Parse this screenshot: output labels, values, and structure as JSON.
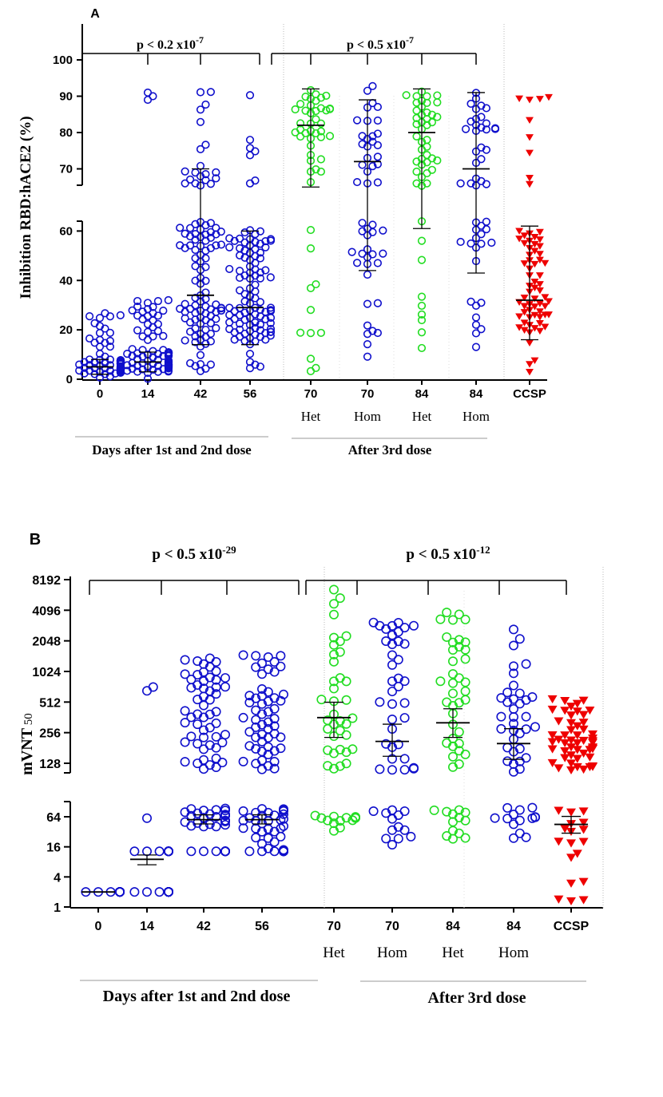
{
  "colors": {
    "blue": "#1010cc",
    "green": "#22dd22",
    "red": "#ee0000",
    "axis": "#000000",
    "divider": "#b8b8b8"
  },
  "chart_data": [
    {
      "type": "scatter",
      "panel_label": "A",
      "ylabel": "Inhibition RBD:hACE2 (%)",
      "y_broken_axis": true,
      "ylim_lower": [
        0,
        64
      ],
      "ylim_upper": [
        65,
        100
      ],
      "yticks_lower": [
        "0",
        "20",
        "40",
        "60"
      ],
      "yticks_upper": [
        "70",
        "80",
        "90",
        "100"
      ],
      "categories": [
        "0",
        "14",
        "42",
        "56",
        "70",
        "70",
        "84",
        "84",
        "CCSP"
      ],
      "subcategories": [
        "",
        "",
        "",
        "",
        "Het",
        "Hom",
        "Het",
        "Hom",
        ""
      ],
      "group_labels": [
        {
          "label": "Days after 1st and 2nd dose",
          "from": 0,
          "to": 3
        },
        {
          "label": "After 3rd dose",
          "from": 4,
          "to": 7
        }
      ],
      "pvalues": [
        {
          "label": "p < 0.2 x10",
          "exp": "-7",
          "cats": [
            0,
            1,
            2,
            3
          ]
        },
        {
          "label": "p < 0.5 x10",
          "exp": "-7",
          "cats": [
            3,
            4,
            5,
            6,
            7
          ]
        }
      ],
      "series": [
        {
          "category": "0",
          "color": "blue",
          "marker": "circle",
          "n": 110,
          "range": [
            0,
            28
          ],
          "median": 5,
          "q": [
            2,
            8
          ]
        },
        {
          "category": "14",
          "color": "blue",
          "marker": "circle",
          "n": 110,
          "range": [
            0,
            33
          ],
          "median": 7,
          "q": [
            3,
            11
          ],
          "extra": [
            89,
            90,
            91
          ]
        },
        {
          "category": "42",
          "color": "blue",
          "marker": "circle",
          "n": 110,
          "range": [
            2,
            94
          ],
          "median": 34,
          "q": [
            14,
            70
          ]
        },
        {
          "category": "56",
          "color": "blue",
          "marker": "circle",
          "n": 110,
          "range": [
            3,
            94
          ],
          "median": 29,
          "q": [
            14,
            60
          ]
        },
        {
          "category": "70 Het",
          "color": "green",
          "marker": "circle",
          "n": 50,
          "range": [
            3,
            94
          ],
          "median": 82,
          "q": [
            65,
            92
          ]
        },
        {
          "category": "70 Hom",
          "color": "blue",
          "marker": "circle",
          "n": 50,
          "range": [
            9,
            94
          ],
          "median": 72,
          "q": [
            44,
            89
          ]
        },
        {
          "category": "84 Het",
          "color": "green",
          "marker": "circle",
          "n": 50,
          "range": [
            2,
            94
          ],
          "median": 80,
          "q": [
            61,
            92
          ]
        },
        {
          "category": "84 Hom",
          "color": "blue",
          "marker": "circle",
          "n": 50,
          "range": [
            9,
            94
          ],
          "median": 70,
          "q": [
            43,
            91
          ]
        },
        {
          "category": "CCSP",
          "color": "red",
          "marker": "triangle-down",
          "n": 70,
          "range": [
            0,
            93
          ],
          "median": 32,
          "q": [
            16,
            62
          ]
        }
      ]
    },
    {
      "type": "scatter",
      "panel_label": "B",
      "ylabel": "mVNT",
      "ylabel_sub": "50",
      "y_scale": "log2",
      "y_broken_axis": true,
      "ylim_lower": [
        1,
        100
      ],
      "ylim_upper": [
        110,
        8192
      ],
      "yticks_lower": [
        "1",
        "4",
        "16",
        "64"
      ],
      "yticks_upper": [
        "128",
        "256",
        "512",
        "1024",
        "2048",
        "4096",
        "8192"
      ],
      "categories": [
        "0",
        "14",
        "42",
        "56",
        "70",
        "70",
        "84",
        "84",
        "CCSP"
      ],
      "subcategories": [
        "",
        "",
        "",
        "",
        "Het",
        "Hom",
        "Het",
        "Hom",
        ""
      ],
      "group_labels": [
        {
          "label": "Days after 1st and 2nd dose",
          "from": 0,
          "to": 3
        },
        {
          "label": "After 3rd dose",
          "from": 4,
          "to": 7
        }
      ],
      "pvalues": [
        {
          "label": "p < 0.5 x10",
          "exp": "-29",
          "cats": [
            0,
            1,
            2,
            3
          ]
        },
        {
          "label": "p < 0.5 x10",
          "exp": "-12",
          "cats": [
            3,
            4,
            5,
            6,
            7
          ]
        }
      ],
      "series": [
        {
          "category": "0",
          "color": "blue",
          "marker": "circle",
          "n": 30,
          "fixed": 2,
          "median": 2,
          "q": [
            2,
            2
          ]
        },
        {
          "category": "14",
          "color": "blue",
          "marker": "circle",
          "n": 60,
          "fixed_mix": [
            2,
            13
          ],
          "extra": [
            60,
            660,
            720
          ],
          "median": 9,
          "q": [
            7,
            11
          ]
        },
        {
          "category": "42",
          "color": "blue",
          "marker": "circle",
          "n": 100,
          "range_low": [
            30,
            95
          ],
          "range_high": [
            110,
            1400
          ],
          "floor": 13,
          "median": 56,
          "q": [
            46,
            70
          ]
        },
        {
          "category": "56",
          "color": "blue",
          "marker": "circle",
          "n": 100,
          "range_low": [
            6,
            95
          ],
          "range_high": [
            110,
            1700
          ],
          "floor": 13,
          "median": 56,
          "q": [
            46,
            70
          ]
        },
        {
          "category": "70 Het",
          "color": "green",
          "marker": "circle",
          "n": 50,
          "range_low": [
            30,
            70
          ],
          "range_high": [
            110,
            6800
          ],
          "median": 360,
          "q": [
            230,
            510
          ]
        },
        {
          "category": "70 Hom",
          "color": "blue",
          "marker": "circle",
          "n": 50,
          "range_low": [
            12,
            90
          ],
          "range_high": [
            110,
            3500
          ],
          "median": 210,
          "q": [
            150,
            310
          ]
        },
        {
          "category": "84 Het",
          "color": "green",
          "marker": "circle",
          "n": 50,
          "range_low": [
            12,
            90
          ],
          "range_high": [
            110,
            3900
          ],
          "median": 320,
          "q": [
            230,
            440
          ]
        },
        {
          "category": "84 Hom",
          "color": "blue",
          "marker": "circle",
          "n": 50,
          "range_low": [
            12,
            90
          ],
          "range_high": [
            95,
            2900
          ],
          "median": 200,
          "q": [
            140,
            280
          ]
        },
        {
          "category": "CCSP",
          "color": "red",
          "marker": "triangle-down",
          "n": 70,
          "range_low": [
            1,
            95
          ],
          "range_high": [
            110,
            560
          ],
          "median": 45,
          "q": [
            30,
            65
          ]
        }
      ]
    }
  ]
}
